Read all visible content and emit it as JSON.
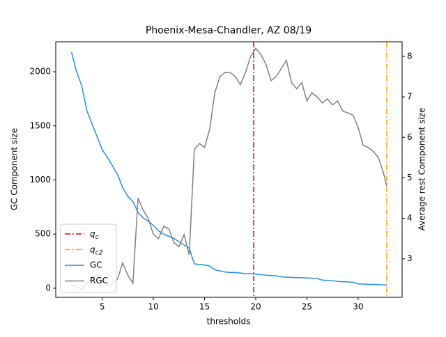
{
  "chart_data": {
    "type": "line",
    "title": "Phoenix-Mesa-Chandler, AZ 08/19",
    "xlabel": "thresholds",
    "ylabel": "GC Component size",
    "y2label": "Average rest Component size",
    "ylabel_color": "#1f8fe6",
    "y2label_color": "#808080",
    "x": [
      2,
      2.5,
      3,
      3.5,
      4,
      4.5,
      5,
      5.5,
      6,
      6.5,
      7,
      7.5,
      8,
      8.5,
      9,
      9.5,
      10,
      10.5,
      11,
      11.5,
      12,
      12.5,
      13,
      13.5,
      14,
      14.5,
      15,
      15.5,
      16,
      16.5,
      17,
      17.5,
      18,
      18.5,
      19,
      19.5,
      20,
      20.5,
      21,
      21.5,
      22,
      22.5,
      23,
      23.5,
      24,
      24.5,
      25,
      25.5,
      26,
      26.5,
      27,
      27.5,
      28,
      28.5,
      29,
      29.5,
      30,
      30.5,
      31,
      31.5,
      32,
      32.5,
      32.8
    ],
    "reference_lines": [
      {
        "name": "q_c",
        "x": 19.8,
        "color": "#e00000"
      },
      {
        "name": "q_c2",
        "x": 32.8,
        "color": "#ffa500"
      }
    ],
    "series": [
      {
        "name": "GC",
        "color": "#1f8fe6",
        "axis": "y",
        "values": [
          2180,
          2000,
          1870,
          1640,
          1520,
          1400,
          1280,
          1210,
          1130,
          1050,
          930,
          850,
          800,
          700,
          650,
          620,
          580,
          530,
          500,
          480,
          460,
          430,
          400,
          370,
          225,
          220,
          215,
          205,
          170,
          160,
          150,
          145,
          145,
          140,
          135,
          135,
          130,
          125,
          120,
          118,
          115,
          105,
          102,
          100,
          98,
          97,
          95,
          93,
          90,
          75,
          72,
          70,
          62,
          60,
          58,
          55,
          40,
          38,
          36,
          35,
          33,
          30,
          28
        ]
      },
      {
        "name": "RGC",
        "color": "#808080",
        "axis": "y2",
        "values": [
          2.35,
          2.3,
          2.25,
          2.4,
          2.5,
          2.6,
          2.5,
          2.35,
          2.4,
          2.5,
          2.9,
          2.6,
          2.4,
          4.5,
          4.2,
          4.0,
          3.6,
          3.5,
          3.8,
          3.75,
          3.4,
          3.3,
          3.6,
          3.1,
          5.7,
          5.85,
          5.75,
          6.2,
          7.1,
          7.5,
          7.6,
          7.6,
          7.5,
          7.3,
          7.6,
          8.0,
          8.2,
          8.05,
          7.8,
          7.4,
          7.5,
          7.7,
          7.9,
          7.35,
          7.2,
          7.35,
          6.9,
          7.1,
          7.0,
          6.85,
          6.95,
          6.8,
          6.9,
          6.65,
          6.6,
          6.55,
          6.25,
          5.8,
          5.75,
          5.65,
          5.5,
          5.1,
          4.8
        ]
      }
    ],
    "xlim": [
      0.46,
      34.3
    ],
    "xticks": [
      5,
      10,
      15,
      20,
      25,
      30
    ],
    "ylim": [
      -84,
      2277
    ],
    "yticks": [
      0,
      500,
      1000,
      1500,
      2000
    ],
    "y2lim": [
      2.05,
      8.36
    ],
    "y2ticks": [
      3,
      4,
      5,
      6,
      7,
      8
    ],
    "legend": "lower left"
  }
}
